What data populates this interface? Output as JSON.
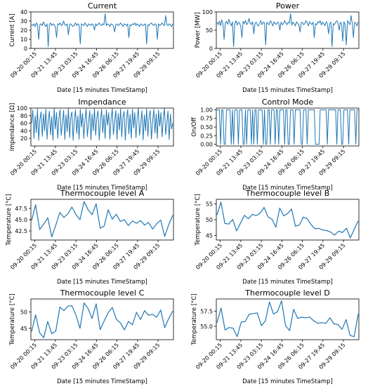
{
  "chart_data": [
    {
      "type": "line",
      "title": "Current",
      "xlabel": "Date [15 minutes TimeStamp]",
      "ylabel": "Current [A]",
      "ylim": [
        0,
        40
      ],
      "yticks": [
        0,
        10,
        20,
        30,
        40
      ],
      "yticklabels": [
        "0",
        "10",
        "20",
        "30",
        "40"
      ],
      "x_tick_labels": [
        "09-20 00:15",
        "09-21 13:45",
        "09-23 03:15",
        "09-24 16:45",
        "09-26 06:15",
        "09-27 19:45",
        "09-29 09:15"
      ],
      "grid": false,
      "series": [
        {
          "values": [
            26,
            25,
            27,
            24,
            28,
            26,
            10,
            26,
            27,
            25,
            29,
            26,
            24,
            27,
            2,
            26,
            28,
            25,
            27,
            26,
            24,
            12,
            27,
            26,
            28,
            25,
            26,
            30,
            26,
            25,
            27,
            15,
            26,
            27,
            25,
            24,
            26,
            28,
            25,
            27,
            26,
            5,
            27,
            26,
            25,
            28,
            26,
            24,
            27,
            26,
            25,
            27,
            26,
            20,
            27,
            25,
            26,
            28,
            26,
            25,
            27,
            26,
            38,
            25,
            27,
            26,
            24,
            27,
            26,
            25,
            18,
            26,
            27,
            25,
            26,
            28,
            26,
            24,
            27,
            26,
            25,
            27,
            12,
            26,
            25,
            27,
            26,
            28,
            25,
            27,
            26,
            24,
            27,
            26,
            25,
            26,
            27,
            5,
            26,
            25,
            27,
            28,
            26,
            25,
            27,
            26,
            10,
            27,
            25,
            26,
            28,
            26,
            25,
            36,
            26,
            25,
            27,
            26,
            24,
            27
          ]
        }
      ]
    },
    {
      "type": "line",
      "title": "Power",
      "xlabel": "Date [15 minutes TimeStamp]",
      "ylabel": "Power [MW]",
      "ylim": [
        0,
        100
      ],
      "yticks": [
        0,
        50,
        100
      ],
      "yticklabels": [
        "0",
        "50",
        "100"
      ],
      "x_tick_labels": [
        "09-20 00:15",
        "09-21 13:45",
        "09-23 03:15",
        "09-24 16:45",
        "09-26 06:15",
        "09-27 19:45",
        "09-29 09:15"
      ],
      "grid": false,
      "series": [
        {
          "values": [
            72,
            65,
            75,
            62,
            78,
            68,
            25,
            70,
            74,
            66,
            80,
            69,
            62,
            73,
            5,
            68,
            76,
            64,
            72,
            70,
            60,
            30,
            74,
            68,
            77,
            65,
            70,
            82,
            68,
            66,
            73,
            40,
            68,
            72,
            64,
            62,
            69,
            76,
            65,
            72,
            70,
            10,
            72,
            68,
            65,
            76,
            70,
            62,
            73,
            68,
            66,
            72,
            69,
            50,
            72,
            65,
            68,
            76,
            70,
            65,
            72,
            69,
            95,
            64,
            72,
            68,
            62,
            73,
            68,
            66,
            45,
            70,
            72,
            65,
            68,
            76,
            70,
            62,
            73,
            68,
            66,
            72,
            30,
            68,
            65,
            73,
            70,
            76,
            64,
            72,
            68,
            62,
            73,
            68,
            40,
            68,
            72,
            5,
            68,
            65,
            72,
            76,
            70,
            50,
            72,
            68,
            20,
            73,
            65,
            10,
            76,
            70,
            65,
            90,
            68,
            30,
            72,
            68,
            62,
            73
          ]
        }
      ]
    },
    {
      "type": "line",
      "title": "Impendance",
      "xlabel": "Date [15 minutes TimeStamp]",
      "ylabel": "Impendance [Ω]",
      "ylim": [
        0,
        100
      ],
      "yticks": [
        20,
        40,
        60,
        80,
        100
      ],
      "yticklabels": [
        "20",
        "40",
        "60",
        "80",
        "100"
      ],
      "x_tick_labels": [
        "09-20 00:15",
        "09-21 13:45",
        "09-23 03:15",
        "09-24 16:45",
        "09-26 06:15",
        "09-27 19:45",
        "09-29 09:15"
      ],
      "grid": false,
      "series": [
        {
          "values": [
            60,
            95,
            20,
            80,
            35,
            98,
            15,
            70,
            90,
            25,
            85,
            40,
            97,
            18,
            65,
            92,
            30,
            78,
            15,
            99,
            45,
            88,
            20,
            72,
            96,
            28,
            60,
            94,
            17,
            82,
            38,
            99,
            22,
            75,
            90,
            15,
            68,
            95,
            33,
            80,
            18,
            97,
            50,
            86,
            20,
            70,
            98,
            25,
            62,
            93,
            16,
            84,
            40,
            99,
            28,
            76,
            92,
            15,
            66,
            97,
            35,
            82,
            20,
            95,
            55,
            88,
            18,
            72,
            99,
            30,
            64,
            94,
            17,
            86,
            42,
            98,
            24,
            78,
            91,
            15,
            70,
            96,
            32,
            84,
            20,
            97,
            48,
            88,
            22,
            74,
            99,
            28,
            60,
            93,
            16,
            82,
            40,
            98,
            26,
            76,
            94,
            18,
            66,
            97,
            34,
            85,
            20,
            95,
            52,
            88,
            24,
            73,
            99,
            30,
            62,
            92,
            17,
            84,
            45,
            60
          ]
        }
      ]
    },
    {
      "type": "line",
      "title": "Control Mode",
      "xlabel": "Date [15 minutes TimeStamp]",
      "ylabel": "On/Off",
      "ylim": [
        -0.05,
        1.05
      ],
      "yticks": [
        0.0,
        0.25,
        0.5,
        0.75,
        1.0
      ],
      "yticklabels": [
        "0.00",
        "0.25",
        "0.50",
        "0.75",
        "1.00"
      ],
      "x_tick_labels": [
        "09-20 00:15",
        "09-21 13:45",
        "09-23 03:15",
        "09-24 16:45",
        "09-26 06:15",
        "09-27 19:45",
        "09-29 09:15"
      ],
      "grid": false,
      "series": [
        {
          "values": [
            1,
            1,
            1,
            0,
            1,
            1,
            0,
            0,
            1,
            1,
            1,
            1,
            0,
            1,
            0,
            1,
            1,
            1,
            0,
            1,
            1,
            1,
            0,
            0,
            1,
            0,
            1,
            1,
            1,
            0,
            1,
            0,
            1,
            1,
            0,
            1,
            1,
            1,
            1,
            0,
            1,
            0,
            0,
            1,
            1,
            0,
            1,
            1,
            1,
            0,
            1,
            1,
            0,
            1,
            1,
            1,
            1,
            0,
            1,
            1,
            0,
            0,
            1,
            1,
            1,
            0,
            1,
            1,
            1,
            1,
            1,
            0,
            0,
            1,
            1,
            1,
            0,
            1,
            1,
            1,
            1,
            1,
            1,
            0,
            0,
            0,
            0,
            1,
            1,
            1,
            1,
            1,
            1,
            0,
            1,
            1,
            1,
            1,
            1,
            1,
            1,
            0,
            1,
            1,
            1,
            0,
            0,
            1,
            1,
            1,
            1,
            0,
            1,
            1,
            1,
            1,
            1,
            0,
            1,
            1
          ]
        }
      ]
    },
    {
      "type": "line",
      "title": "Thermocouple level A",
      "xlabel": "Date [15 minutes TimeStamp]",
      "ylabel": "Temperature [°C]",
      "ylim": [
        40.5,
        49.5
      ],
      "yticks": [
        42.5,
        45.0,
        47.5
      ],
      "yticklabels": [
        "42.5",
        "45.0",
        "47.5"
      ],
      "x_tick_labels": [
        "09-20 00:15",
        "09-21 13:45",
        "09-23 03:15",
        "09-24 16:45",
        "09-26 06:15",
        "09-27 19:45",
        "09-29 09:15"
      ],
      "grid": false,
      "series": [
        {
          "values": [
            44.8,
            48.3,
            42.8,
            44.0,
            45.4,
            41.2,
            43.8,
            46.6,
            45.5,
            46.3,
            47.8,
            46.1,
            45.0,
            49.0,
            47.2,
            46.1,
            48.5,
            43.1,
            43.6,
            47.2,
            45.1,
            46.2,
            44.6,
            45.0,
            43.7,
            44.7,
            44.2,
            44.8,
            43.8,
            44.4,
            42.9,
            44.1,
            44.9,
            41.3,
            43.9,
            46.0
          ]
        }
      ]
    },
    {
      "type": "line",
      "title": "Thermocouple level B",
      "xlabel": "Date [15 minutes TimeStamp]",
      "ylabel": "Temperature [°C]",
      "ylim": [
        43.5,
        56.5
      ],
      "yticks": [
        45,
        50,
        55
      ],
      "yticklabels": [
        "45",
        "50",
        "55"
      ],
      "x_tick_labels": [
        "09-20 00:15",
        "09-21 13:45",
        "09-23 03:15",
        "09-24 16:45",
        "09-26 06:15",
        "09-27 19:45",
        "09-29 09:15"
      ],
      "grid": false,
      "series": [
        {
          "values": [
            51.5,
            55.6,
            48.8,
            48.6,
            50.1,
            46.4,
            48.9,
            51.4,
            50.3,
            51.7,
            51.3,
            52.1,
            53.9,
            50.9,
            50.2,
            47.6,
            53.7,
            51.2,
            52.0,
            53.4,
            47.9,
            48.3,
            50.8,
            50.3,
            48.4,
            47.1,
            47.2,
            46.7,
            46.5,
            46.0,
            45.1,
            46.3,
            45.9,
            47.3,
            44.2,
            46.9,
            49.6
          ]
        }
      ]
    },
    {
      "type": "line",
      "title": "Thermocouple level C",
      "xlabel": "Date [15 minutes TimeStamp]",
      "ylabel": "Temperature [°C]",
      "ylim": [
        41.5,
        54.0
      ],
      "yticks": [
        45,
        50
      ],
      "yticklabels": [
        "45",
        "50"
      ],
      "x_tick_labels": [
        "09-20 00:15",
        "09-21 13:45",
        "09-23 03:15",
        "09-24 16:45",
        "09-26 06:15",
        "09-27 19:45",
        "09-29 09:15"
      ],
      "grid": false,
      "series": [
        {
          "values": [
            44.0,
            49.1,
            43.6,
            42.1,
            47.1,
            43.3,
            44.2,
            51.5,
            50.4,
            51.8,
            51.9,
            49.0,
            45.0,
            52.8,
            51.1,
            48.0,
            52.5,
            44.6,
            47.3,
            49.8,
            51.4,
            47.8,
            46.7,
            44.5,
            47.1,
            46.1,
            49.9,
            47.7,
            50.4,
            49.0,
            49.3,
            48.4,
            50.6,
            45.2,
            48.0,
            50.3
          ]
        }
      ]
    },
    {
      "type": "line",
      "title": "Thermocouple level D",
      "xlabel": "Date [15 minutes TimeStamp]",
      "ylabel": "Temperature [°C]",
      "ylim": [
        52.8,
        59.5
      ],
      "yticks": [
        55.0,
        57.5
      ],
      "yticklabels": [
        "55.0",
        "57.5"
      ],
      "x_tick_labels": [
        "09-20 00:15",
        "09-21 13:45",
        "09-23 03:15",
        "09-24 16:45",
        "09-26 06:15",
        "09-27 19:45",
        "09-29 09:15"
      ],
      "grid": false,
      "series": [
        {
          "values": [
            55.6,
            58.0,
            54.4,
            54.8,
            54.7,
            53.3,
            55.7,
            55.8,
            57.0,
            57.1,
            57.2,
            55.1,
            55.9,
            59.0,
            57.0,
            57.4,
            59.2,
            55.1,
            54.3,
            57.8,
            56.3,
            56.5,
            56.4,
            56.5,
            55.9,
            55.5,
            55.6,
            55.5,
            56.4,
            55.4,
            55.3,
            54.5,
            56.1,
            53.5,
            53.3,
            57.0
          ]
        }
      ]
    }
  ]
}
